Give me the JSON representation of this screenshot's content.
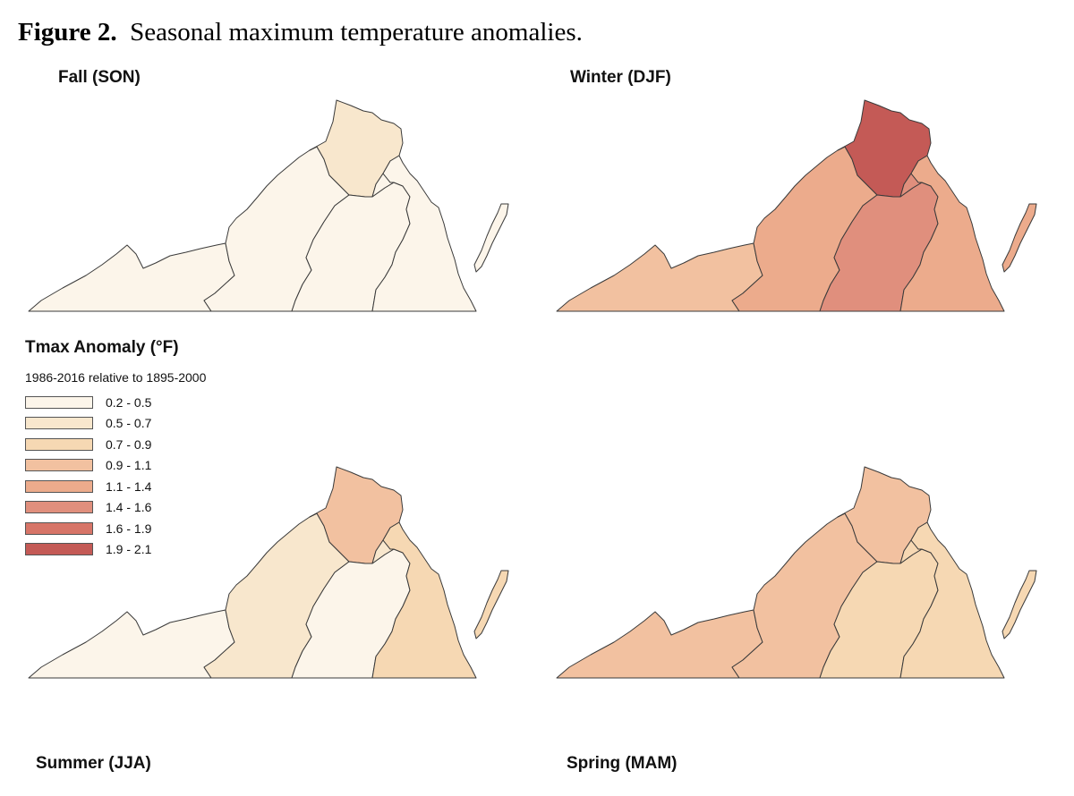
{
  "caption": {
    "label": "Figure 2.",
    "text": "Seasonal maximum temperature anomalies."
  },
  "legend": {
    "title": "Tmax Anomaly (°F)",
    "subtitle": "1986-2016 relative to 1895-2000",
    "classes": [
      {
        "range": "0.2 - 0.5",
        "color": "#fcf5ea"
      },
      {
        "range": "0.5 - 0.7",
        "color": "#f8e7cd"
      },
      {
        "range": "0.7 - 0.9",
        "color": "#f6d8b3"
      },
      {
        "range": "0.9 - 1.1",
        "color": "#f2c1a0"
      },
      {
        "range": "1.1 - 1.4",
        "color": "#ecab8c"
      },
      {
        "range": "1.4 - 1.6",
        "color": "#e08f7d"
      },
      {
        "range": "1.6 - 1.9",
        "color": "#d77568"
      },
      {
        "range": "1.9 - 2.1",
        "color": "#c45a56"
      }
    ]
  },
  "panels": {
    "fall": {
      "title": "Fall (SON)",
      "regions": {
        "southwest": 0,
        "central_mountain": 0,
        "north": 1,
        "piedmont": 0,
        "central_piedmont": 0,
        "tidewater": 0,
        "eastern_shore": 0
      }
    },
    "winter": {
      "title": "Winter (DJF)",
      "regions": {
        "southwest": 3,
        "central_mountain": 4,
        "north": 7,
        "piedmont": 5,
        "central_piedmont": 5,
        "tidewater": 4,
        "eastern_shore": 4
      }
    },
    "summer": {
      "title": "Summer (JJA)",
      "regions": {
        "southwest": 0,
        "central_mountain": 1,
        "north": 3,
        "piedmont": 0,
        "central_piedmont": 1,
        "tidewater": 2,
        "eastern_shore": 2
      }
    },
    "spring": {
      "title": "Spring (MAM)",
      "regions": {
        "southwest": 3,
        "central_mountain": 3,
        "north": 3,
        "piedmont": 2,
        "central_piedmont": 2,
        "tidewater": 2,
        "eastern_shore": 2
      }
    }
  }
}
